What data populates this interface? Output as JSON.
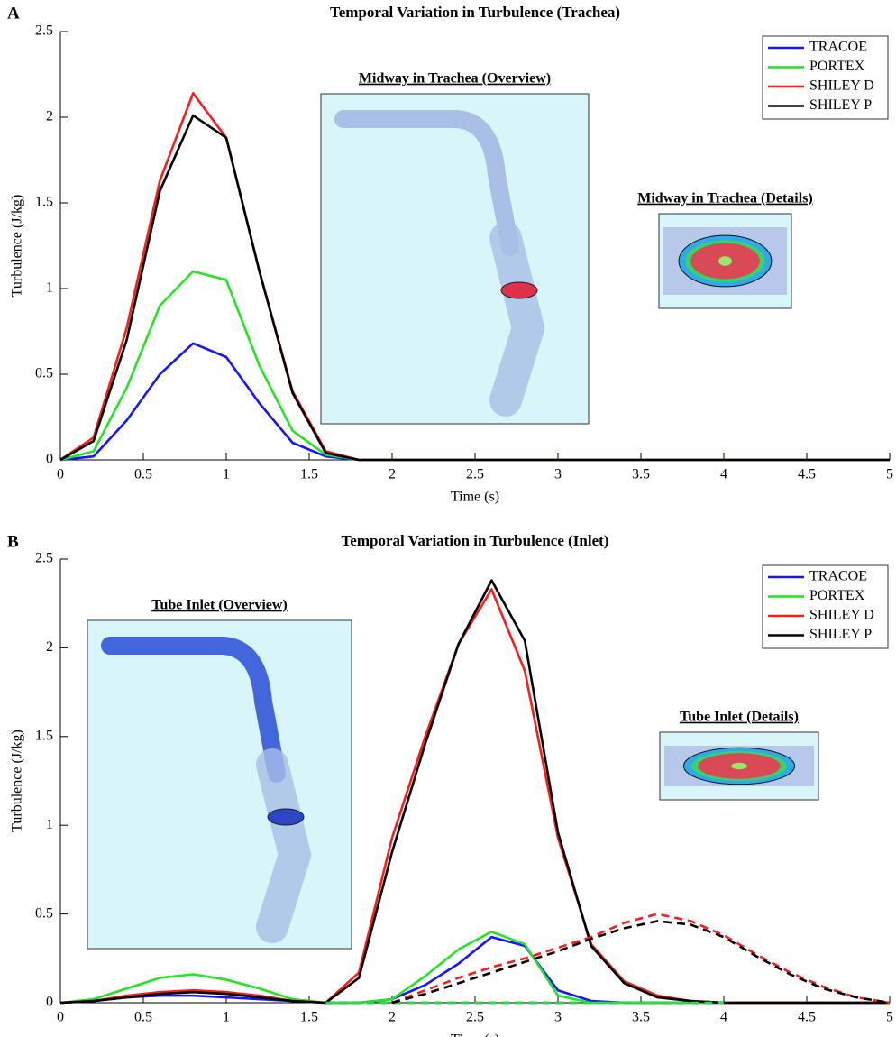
{
  "chart_data": [
    {
      "type": "line",
      "panel_label": "A",
      "title": "Temporal Variation in Turbulence (Trachea)",
      "x_label": "Time (s)",
      "y_label": "Turbulence (J/kg)",
      "x": [
        0,
        0.2,
        0.4,
        0.6,
        0.8,
        1,
        1.2,
        1.4,
        1.6,
        1.8,
        2,
        2.2,
        2.4,
        2.6,
        2.8,
        3,
        3.2,
        3.4,
        3.6,
        3.8,
        4,
        4.2,
        4.4,
        4.6,
        4.8,
        5
      ],
      "xlim": [
        0,
        5
      ],
      "xticks": [
        0,
        0.5,
        1,
        1.5,
        2,
        2.5,
        3,
        3.5,
        4,
        4.5,
        5
      ],
      "ylim": [
        0,
        2.5
      ],
      "yticks": [
        0,
        0.5,
        1,
        1.5,
        2,
        2.5
      ],
      "legend": "upper right",
      "series": [
        {
          "name": "TRACOE",
          "color": "#1515ff",
          "values": [
            0,
            0.02,
            0.23,
            0.5,
            0.68,
            0.6,
            0.33,
            0.1,
            0.02,
            0,
            0,
            0,
            0,
            0,
            0,
            0,
            0,
            0,
            0,
            0,
            0,
            0,
            0,
            0,
            0,
            0
          ]
        },
        {
          "name": "PORTEX",
          "color": "#22e622",
          "values": [
            0,
            0.05,
            0.42,
            0.9,
            1.1,
            1.05,
            0.55,
            0.17,
            0.03,
            0,
            0,
            0,
            0,
            0,
            0,
            0,
            0,
            0,
            0,
            0,
            0,
            0,
            0,
            0,
            0,
            0
          ]
        },
        {
          "name": "SHILEY D",
          "color": "#ff1a1a",
          "values": [
            0,
            0.13,
            0.77,
            1.63,
            2.14,
            1.88,
            1.1,
            0.4,
            0.05,
            0,
            0,
            0,
            0,
            0,
            0,
            0,
            0,
            0,
            0,
            0,
            0,
            0,
            0,
            0,
            0,
            0
          ]
        },
        {
          "name": "SHILEY P",
          "color": "#000000",
          "values": [
            0,
            0.11,
            0.7,
            1.57,
            2.01,
            1.88,
            1.1,
            0.39,
            0.04,
            0,
            0,
            0,
            0,
            0,
            0,
            0,
            0,
            0,
            0,
            0,
            0,
            0,
            0,
            0,
            0,
            0
          ]
        }
      ],
      "insets": [
        {
          "title": "Midway in Trachea (Overview)"
        },
        {
          "title": "Midway in Trachea (Details)"
        }
      ]
    },
    {
      "type": "line",
      "panel_label": "B",
      "title": "Temporal Variation in Turbulence (Inlet)",
      "x_label": "Time (s)",
      "y_label": "Turbulence (J/kg)",
      "x": [
        0,
        0.2,
        0.4,
        0.6,
        0.8,
        1,
        1.2,
        1.4,
        1.6,
        1.8,
        2,
        2.2,
        2.4,
        2.6,
        2.8,
        3,
        3.2,
        3.4,
        3.6,
        3.8,
        4,
        4.2,
        4.4,
        4.6,
        4.8,
        5
      ],
      "xlim": [
        0,
        5
      ],
      "xticks": [
        0,
        0.5,
        1,
        1.5,
        2,
        2.5,
        3,
        3.5,
        4,
        4.5,
        5
      ],
      "ylim": [
        0,
        2.5
      ],
      "yticks": [
        0,
        0.5,
        1,
        1.5,
        2,
        2.5
      ],
      "legend": "upper right",
      "series": [
        {
          "name": "TRACOE",
          "color": "#1515ff",
          "values": [
            0,
            0.01,
            0.03,
            0.04,
            0.04,
            0.03,
            0.02,
            0.01,
            0,
            0,
            0.02,
            0.1,
            0.22,
            0.37,
            0.32,
            0.07,
            0.01,
            0,
            0,
            0,
            0,
            0,
            0,
            0,
            0,
            0
          ]
        },
        {
          "name": "PORTEX",
          "color": "#22e622",
          "values": [
            0,
            0.02,
            0.08,
            0.14,
            0.16,
            0.13,
            0.08,
            0.02,
            0,
            0,
            0.02,
            0.15,
            0.3,
            0.4,
            0.33,
            0.04,
            0,
            0,
            0,
            0,
            0,
            0,
            0,
            0,
            0,
            0
          ]
        },
        {
          "name": "SHILEY D",
          "color": "#ff1a1a",
          "values": [
            0,
            0.01,
            0.04,
            0.06,
            0.07,
            0.06,
            0.04,
            0.01,
            0,
            0.17,
            0.93,
            1.5,
            2.02,
            2.33,
            1.87,
            0.93,
            0.33,
            0.12,
            0.04,
            0.01,
            0,
            0,
            0,
            0,
            0,
            0
          ]
        },
        {
          "name": "SHILEY P",
          "color": "#000000",
          "values": [
            0,
            0.01,
            0.03,
            0.05,
            0.06,
            0.05,
            0.03,
            0.01,
            0,
            0.14,
            0.85,
            1.46,
            2.02,
            2.38,
            2.04,
            0.96,
            0.32,
            0.11,
            0.03,
            0.01,
            0,
            0,
            0,
            0,
            0,
            0
          ]
        },
        {
          "color": "#1515ff",
          "dash": true,
          "values": [
            null,
            null,
            null,
            null,
            null,
            null,
            null,
            null,
            0,
            0,
            0,
            0,
            0,
            0,
            0,
            0,
            0,
            0,
            0,
            0,
            0,
            null,
            null,
            null,
            null,
            null
          ]
        },
        {
          "color": "#22e622",
          "dash": true,
          "values": [
            null,
            null,
            null,
            null,
            null,
            null,
            null,
            null,
            0,
            0,
            0,
            0,
            0,
            0,
            0,
            0,
            0,
            0,
            0,
            0,
            0,
            null,
            null,
            null,
            null,
            null
          ]
        },
        {
          "color": "#ff1a1a",
          "dash": true,
          "values": [
            null,
            null,
            null,
            null,
            null,
            null,
            null,
            null,
            null,
            null,
            0,
            0.07,
            0.14,
            0.2,
            0.25,
            0.31,
            0.37,
            0.45,
            0.5,
            0.46,
            0.38,
            0.27,
            0.17,
            0.09,
            0.03,
            0
          ]
        },
        {
          "color": "#000000",
          "dash": true,
          "values": [
            null,
            null,
            null,
            null,
            null,
            null,
            null,
            null,
            null,
            null,
            0,
            0.05,
            0.11,
            0.17,
            0.23,
            0.29,
            0.36,
            0.42,
            0.46,
            0.44,
            0.37,
            0.26,
            0.16,
            0.08,
            0.03,
            0
          ]
        }
      ],
      "insets": [
        {
          "title": "Tube Inlet (Overview)"
        },
        {
          "title": "Tube Inlet (Details)"
        }
      ]
    }
  ]
}
